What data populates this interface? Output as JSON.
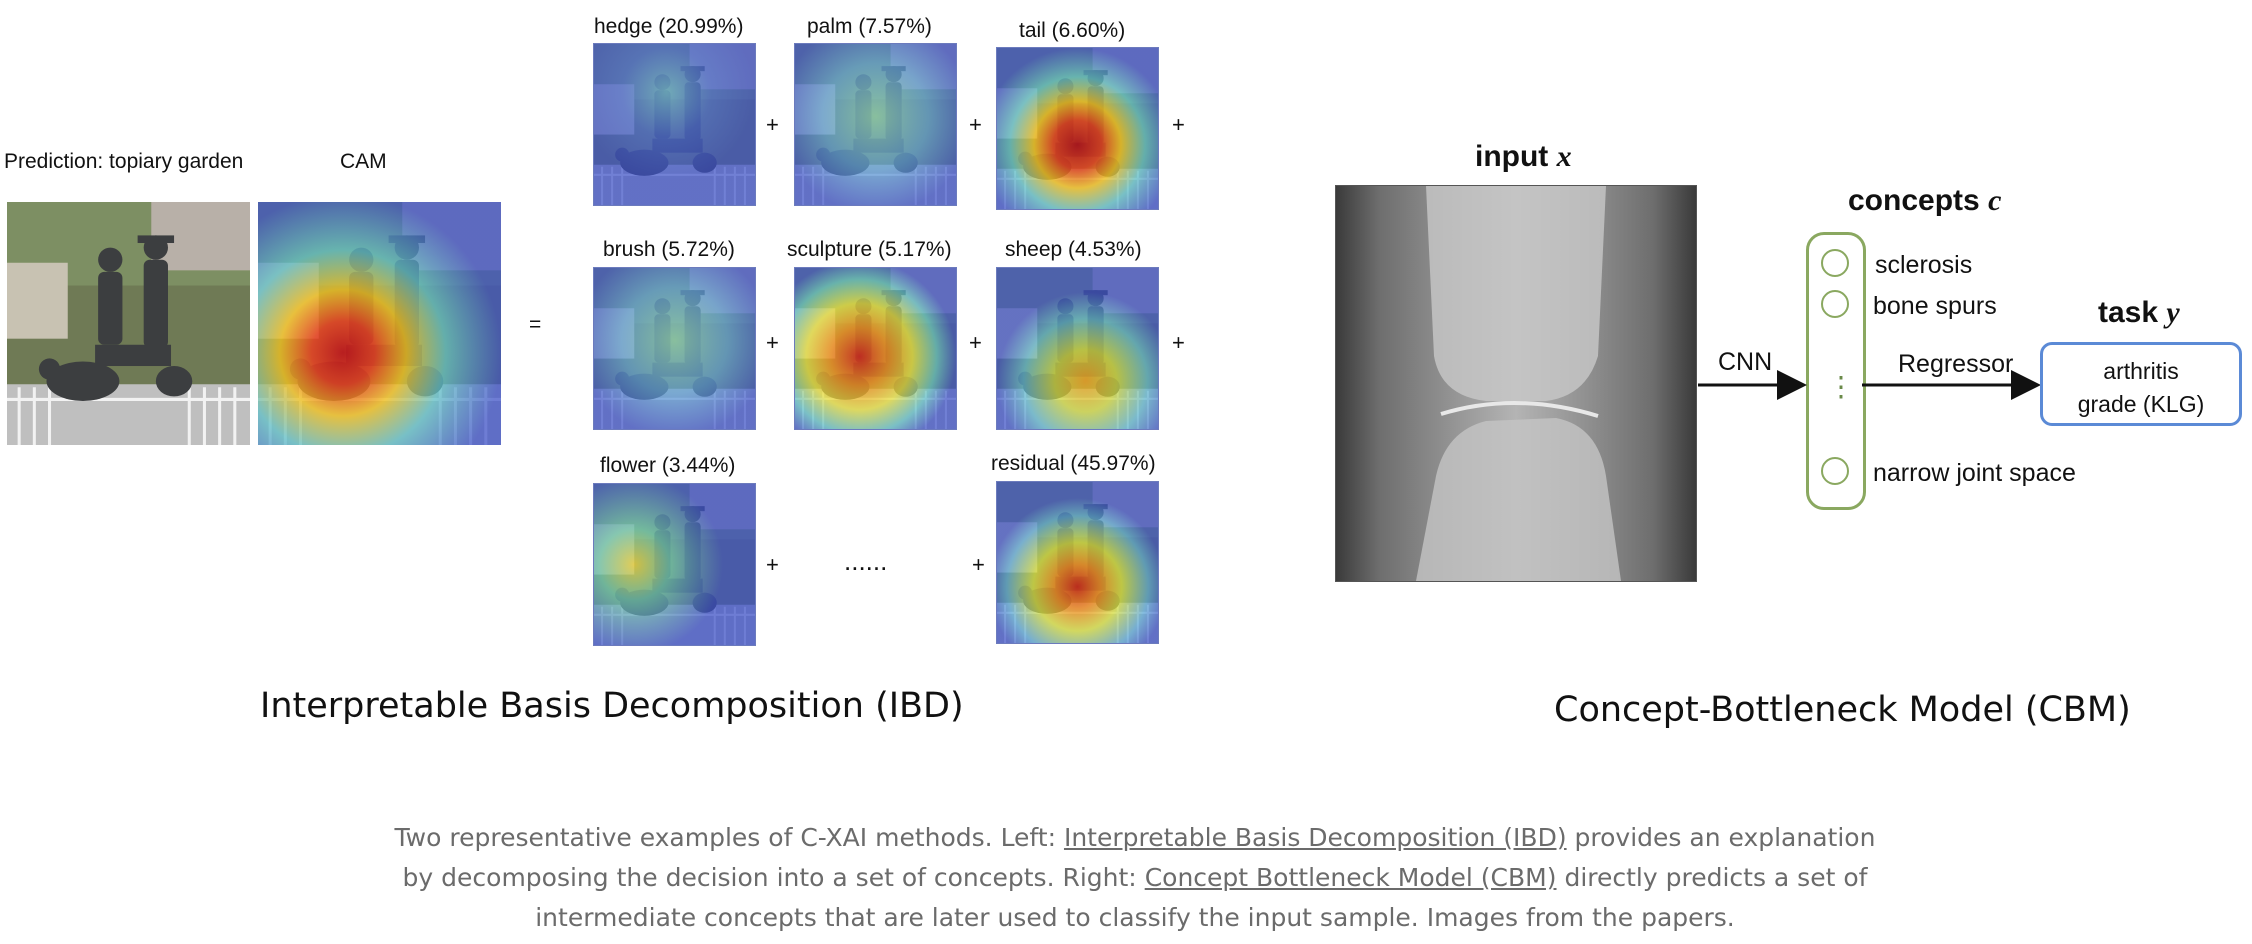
{
  "ibd": {
    "prediction_label": "Prediction: topiary garden",
    "cam_label": "CAM",
    "equals": "=",
    "tiles": [
      {
        "label": "hedge (20.99%)",
        "hotspot": "top-center"
      },
      {
        "label": "palm (7.57%)",
        "hotspot": "diffuse"
      },
      {
        "label": "tail (6.60%)",
        "hotspot": "center-strong"
      },
      {
        "label": "brush (5.72%)",
        "hotspot": "diffuse"
      },
      {
        "label": "sculpture (5.17%)",
        "hotspot": "center-left"
      },
      {
        "label": "sheep (4.53%)",
        "hotspot": "bottom-right"
      },
      {
        "label": "flower (3.44%)",
        "hotspot": "left"
      },
      {
        "label": "residual (45.97%)",
        "hotspot": "bottom-center"
      }
    ],
    "plus": "+",
    "ellipsis": "......",
    "title": "Interpretable Basis Decomposition (IBD)"
  },
  "cbm": {
    "input_label": "input",
    "input_var": "x",
    "concepts_label": "concepts",
    "concepts_var": "c",
    "task_label": "task",
    "task_var": "y",
    "cnn_label": "CNN",
    "regressor_label": "Regressor",
    "concepts": [
      "sclerosis",
      "bone spurs",
      "narrow joint space"
    ],
    "vertical_ellipsis": "⋮",
    "task_output_line1": "arthritis",
    "task_output_line2": "grade (KLG)",
    "title": "Concept-Bottleneck Model (CBM)"
  },
  "caption": {
    "part1": "Two representative examples of C-XAI methods. Left: ",
    "link1": "Interpretable Basis Decomposition (IBD)",
    "part2": " provides an explanation by decomposing the decision into a set of concepts. Right: ",
    "link2": "Concept Bottleneck Model (CBM)",
    "part3": " directly predicts a set of intermediate concepts that are later used to classify the input sample. Images from the papers."
  },
  "colors": {
    "heat_hot": "#d42a1c",
    "heat_cold": "#3a4fc8",
    "cbm_green": "#8aa860",
    "cbm_blue": "#5b8ad6",
    "caption_gray": "#6b6b6b"
  }
}
